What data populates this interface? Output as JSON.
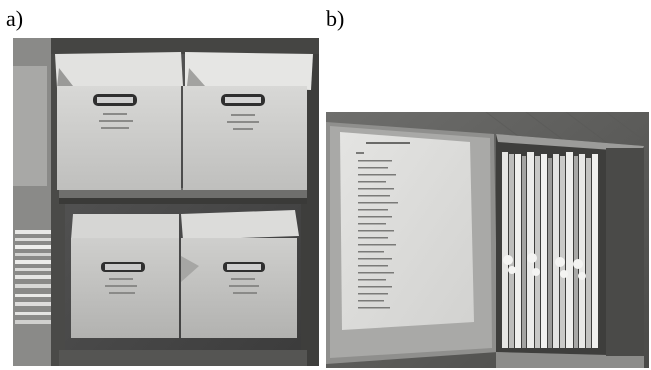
{
  "figure": {
    "panel_a": {
      "label": "a)"
    },
    "panel_b": {
      "label": "b)"
    }
  }
}
